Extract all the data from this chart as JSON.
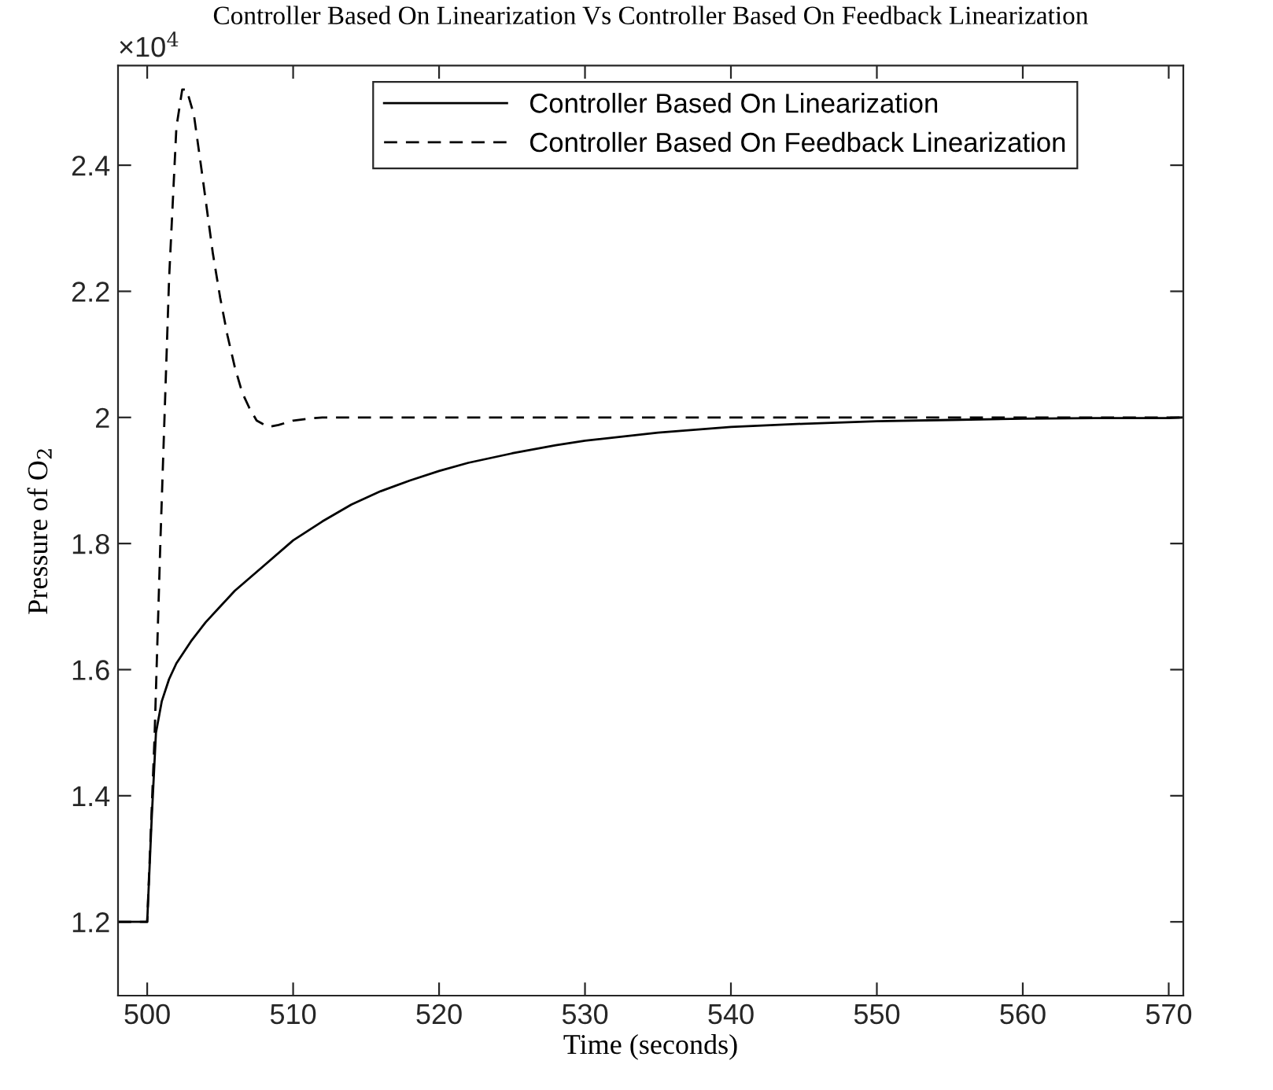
{
  "chart_data": {
    "type": "line",
    "title": "Controller Based On Linearization Vs Controller Based On Feedback Linearization",
    "xlabel": "Time (seconds)",
    "ylabel": "Pressure of O$_{2}$",
    "annotations": [
      "×10$^{4}$"
    ],
    "series": [
      {
        "name": "Controller Based On Linearization",
        "color": "#000000",
        "line_style": "solid",
        "x": [
          498,
          500,
          500.3,
          500.6,
          501,
          501.5,
          502,
          503,
          504,
          505,
          506,
          507,
          508,
          510,
          512,
          514,
          516,
          518,
          520,
          522,
          525,
          528,
          530,
          535,
          540,
          545,
          550,
          555,
          560,
          565,
          570,
          571
        ],
        "values": [
          1.2,
          1.2,
          1.36,
          1.5,
          1.55,
          1.585,
          1.61,
          1.645,
          1.675,
          1.7,
          1.725,
          1.745,
          1.765,
          1.805,
          1.835,
          1.862,
          1.883,
          1.9,
          1.915,
          1.928,
          1.943,
          1.956,
          1.963,
          1.976,
          1.985,
          1.99,
          1.994,
          1.996,
          1.998,
          1.999,
          1.999,
          2.0
        ]
      },
      {
        "name": "Controller Based On Feedback Linearization",
        "color": "#000000",
        "line_style": "dashed",
        "x": [
          498,
          500,
          500.5,
          500.9,
          501.5,
          502,
          502.4,
          502.7,
          503.2,
          503.8,
          504.5,
          505,
          505.5,
          506,
          506.5,
          507,
          507.5,
          508.3,
          509,
          510,
          511,
          512,
          514,
          520,
          530,
          540,
          550,
          560,
          571
        ],
        "values": [
          1.2,
          1.2,
          1.49,
          1.8,
          2.22,
          2.46,
          2.52,
          2.52,
          2.48,
          2.38,
          2.26,
          2.19,
          2.13,
          2.08,
          2.04,
          2.015,
          1.995,
          1.985,
          1.988,
          1.995,
          1.998,
          2.0,
          2.0,
          2.0,
          2.0,
          2.0,
          2.0,
          2.0,
          2.0
        ]
      }
    ],
    "xlim": [
      498,
      571
    ],
    "xticks": [
      500,
      510,
      520,
      530,
      540,
      550,
      560,
      570
    ],
    "ylim": [
      1.083,
      2.558
    ],
    "yticks": [
      1.2,
      1.4,
      1.6,
      1.8,
      2,
      2.2,
      2.4
    ],
    "grid": false,
    "legend": "top"
  }
}
